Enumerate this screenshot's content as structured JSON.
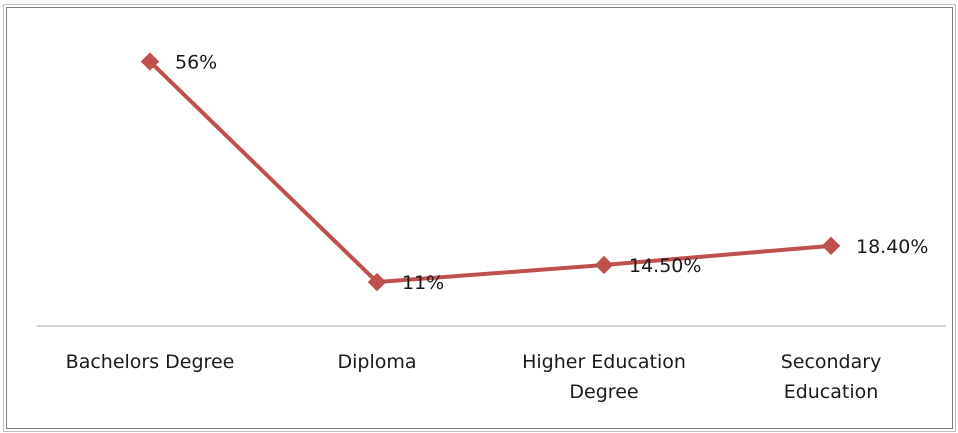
{
  "chart_data": {
    "type": "line",
    "categories": [
      [
        "Bachelors Degree"
      ],
      [
        "Diploma"
      ],
      [
        "Higher Education",
        "Degree"
      ],
      [
        "Secondary",
        "Education"
      ]
    ],
    "values": [
      56,
      11,
      14.5,
      18.4
    ],
    "data_labels": [
      "56%",
      "11%",
      "14.50%",
      "18.40%"
    ],
    "title": "",
    "xlabel": "",
    "ylabel": "",
    "ylim": [
      0,
      60
    ],
    "grid": false,
    "legend": "none",
    "series_color": "#c0504d"
  }
}
